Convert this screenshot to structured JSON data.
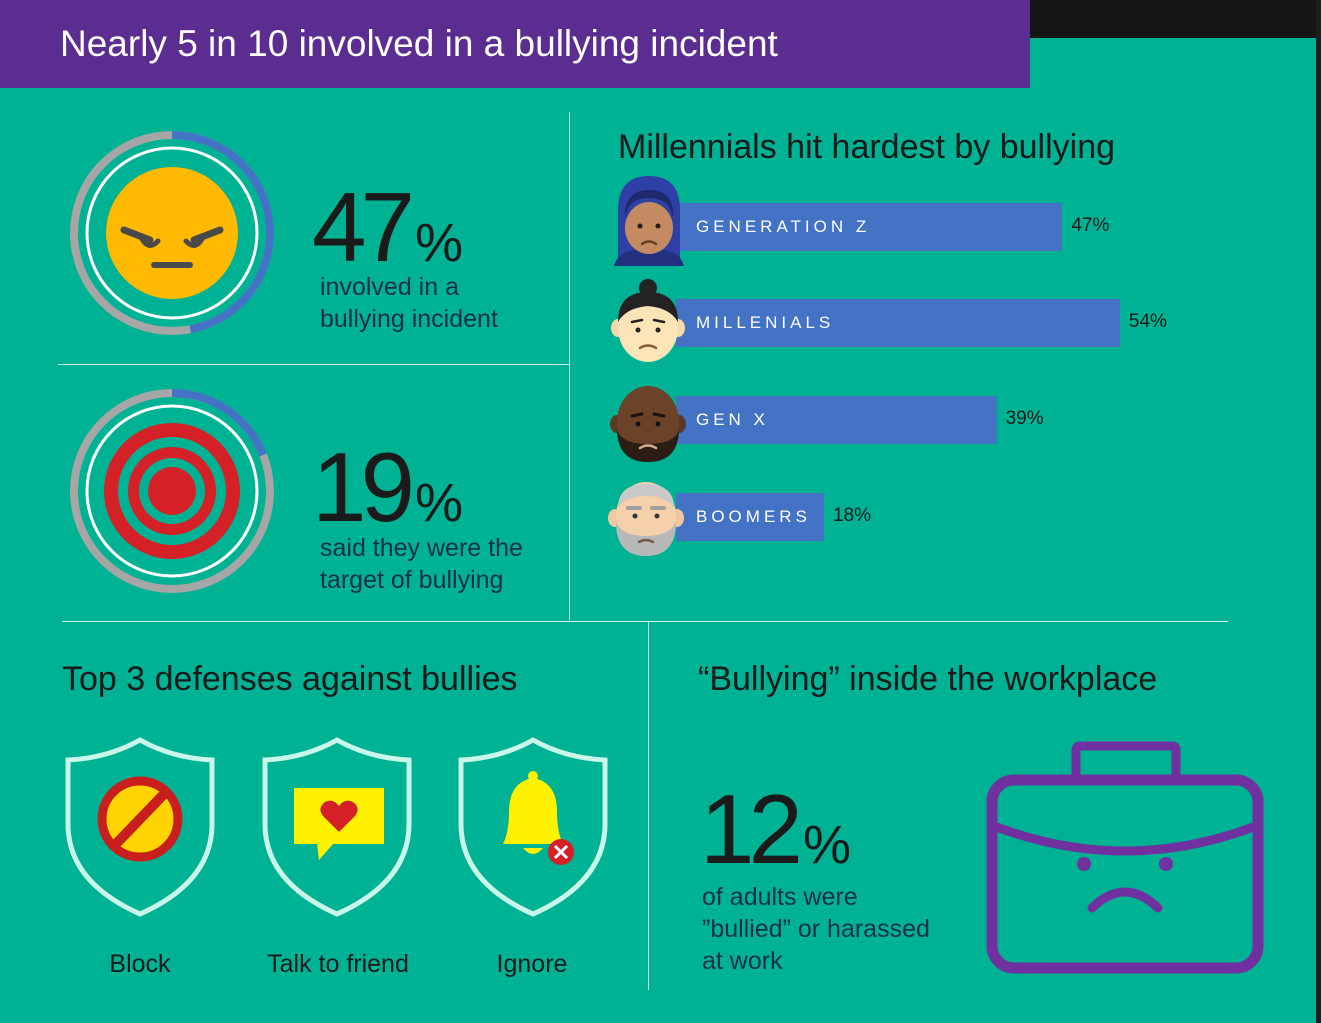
{
  "header": {
    "title": "Nearly 5 in 10 involved in a bullying incident"
  },
  "stats": [
    {
      "number": "47",
      "unit": "%",
      "value": 47,
      "line1": "involved in a",
      "line2": "bullying incident"
    },
    {
      "number": "19",
      "unit": "%",
      "value": 19,
      "line1": "said they were the",
      "line2": "target of bullying"
    }
  ],
  "chart_data": {
    "type": "bar",
    "title": "Millennials hit hardest by bullying",
    "categories": [
      "GENERATION Z",
      "MILLENIALS",
      "GEN X",
      "BOOMERS"
    ],
    "values": [
      47,
      54,
      39,
      18
    ],
    "value_labels": [
      "47%",
      "54%",
      "39%",
      "18%"
    ],
    "orientation": "horizontal",
    "color": "#4472c4"
  },
  "defenses": {
    "title": "Top 3 defenses against bullies",
    "items": [
      {
        "label": "Block",
        "icon": "block-icon"
      },
      {
        "label": "Talk to friend",
        "icon": "heart-message-icon"
      },
      {
        "label": "Ignore",
        "icon": "muted-bell-icon"
      }
    ]
  },
  "workplace": {
    "title": "“Bullying” inside the workplace",
    "number": "12",
    "unit": "%",
    "line1": "of adults were",
    "line2": "”bullied” or harassed",
    "line3": "at work",
    "icon": "sad-briefcase-icon"
  },
  "colors": {
    "background": "#00b294",
    "header": "#5c2d91",
    "bar": "#4472c4",
    "ring_progress": "#4472c4",
    "ring_track": "#a6a6a6",
    "briefcase": "#7030a0"
  }
}
